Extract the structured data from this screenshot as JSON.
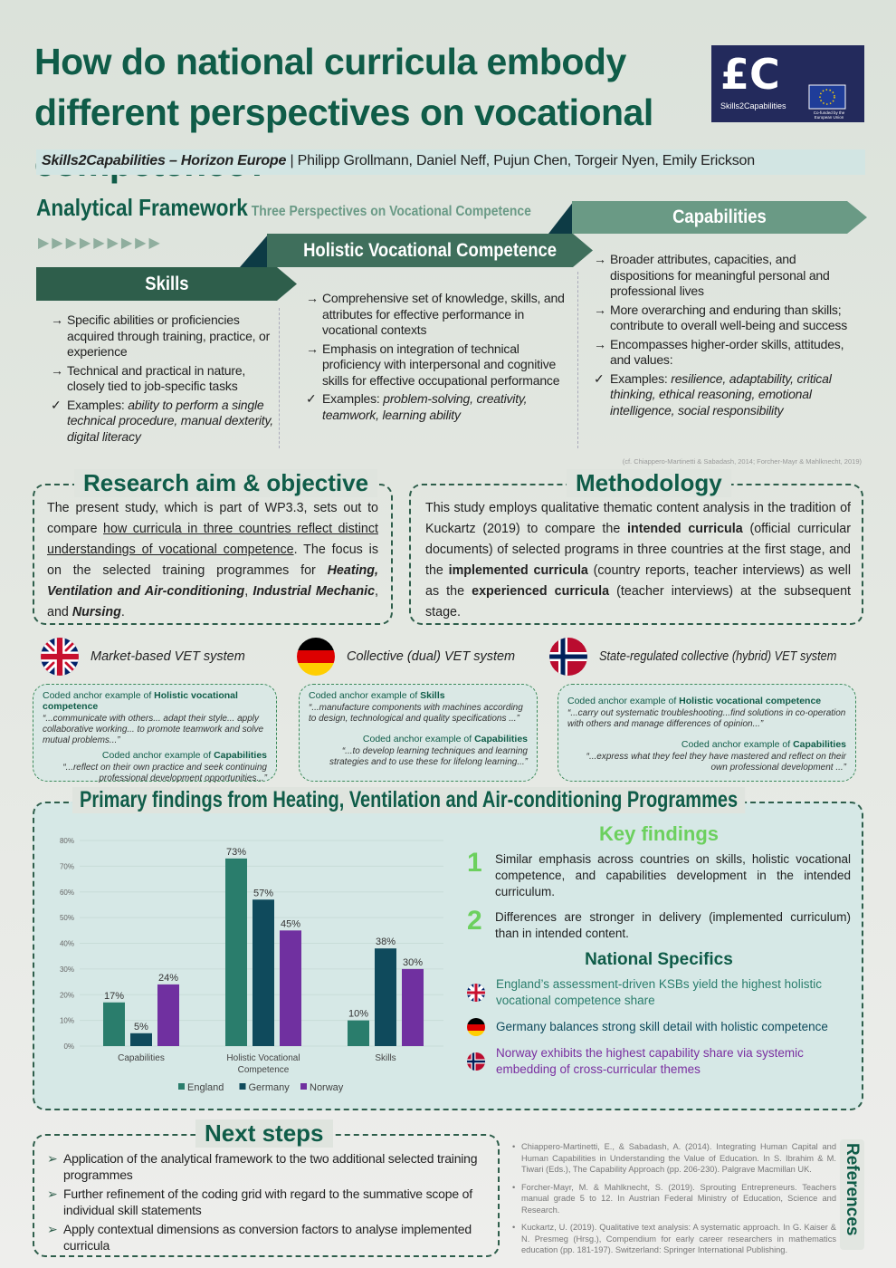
{
  "title": "How do national curricula embody different perspectives on vocational competence?",
  "logo": {
    "name": "Skills2Capabilities",
    "eu": "Co-funded by the European Union"
  },
  "authors": {
    "project": "Skills2Capabilities – Horizon Europe",
    "names": "| Philipp Grollmann, Daniel Neff, Pujun Chen, Torgeir Nyen, Emily Erickson"
  },
  "framework": {
    "title": "Analytical Framework",
    "subtitle": "Three Perspectives on Vocational Competence",
    "skills": {
      "label": "Skills",
      "items": [
        "Specific abilities or proficiencies acquired through training, practice, or experience",
        "Technical and practical in nature, closely tied to job-specific tasks"
      ],
      "examples_label": "Examples: ",
      "examples": "ability to perform a single technical procedure, manual dexterity, digital literacy"
    },
    "hvc": {
      "label": "Holistic Vocational Competence",
      "items": [
        "Comprehensive set of knowledge, skills, and attributes for effective performance in vocational contexts",
        "Emphasis on integration of technical proficiency with interpersonal and cognitive skills for effective occupational performance"
      ],
      "examples_label": "Examples: ",
      "examples": "problem-solving, creativity, teamwork, learning ability"
    },
    "capabilities": {
      "label": "Capabilities",
      "items": [
        "Broader attributes, capacities, and dispositions for meaningful personal and professional lives",
        "More overarching and enduring than skills; contribute to overall well-being and success",
        "Encompasses higher-order skills, attitudes, and values:"
      ],
      "examples_label": "Examples: ",
      "examples": "resilience, adaptability, critical thinking, ethical reasoning, emotional intelligence, social responsibility"
    },
    "citation": "(cf. Chiappero-Martinetti & Sabadash, 2014; Forcher-Mayr & Mahlknecht, 2019)"
  },
  "research": {
    "title": "Research aim & objective",
    "p1": "The present study, which is part of WP3.3, sets out to compare ",
    "u": "how curricula in three countries reflect distinct understandings of vocational competence",
    "p2": ". The focus is on the selected training programmes for ",
    "b1": "Heating, Ventilation and Air-conditioning",
    "c1": ", ",
    "b2": "Industrial Mechanic",
    "c2": ", and ",
    "b3": "Nursing",
    "c3": "."
  },
  "method": {
    "title": "Methodology",
    "p1": "This study employs qualitative thematic content analysis in the tradition of Kuckartz (2019) to compare the ",
    "b1": "intended curricula",
    "p2": " (official curricular documents) of selected programs in three countries at the first stage,  and the ",
    "b2": "implemented curricula",
    "p3": " (country reports, teacher interviews) as well as the ",
    "b3": "experienced curricula",
    "p4": " (teacher interviews) at the subsequent stage."
  },
  "vet": [
    {
      "label": "Market-based VET system",
      "a1_pre": "Coded anchor example of ",
      "a1": "Holistic vocational competence",
      "q1": "“...communicate with others... adapt their style... apply collaborative working... to promote teamwork and solve mutual problems...”",
      "a2_pre": "Coded anchor example of ",
      "a2": "Capabilities",
      "q2": "“...reflect on their own practice and seek continuing professional development opportunities...”"
    },
    {
      "label": "Collective (dual) VET system",
      "a1_pre": "Coded anchor example of ",
      "a1": "Skills",
      "q1": "“...manufacture components with machines according to design, technological and quality specifications ...”",
      "a2_pre": "Coded anchor example of ",
      "a2": "Capabilities",
      "q2": "“...to develop learning techniques and learning strategies and to use these for lifelong learning...”"
    },
    {
      "label": "State-regulated collective (hybrid) VET system",
      "a1_pre": "Coded anchor example of ",
      "a1": "Holistic vocational competence",
      "q1": "“...carry out systematic troubleshooting...find solutions in co-operation with others and manage differences of opinion...”",
      "a2_pre": "Coded anchor example of ",
      "a2": "Capabilities",
      "q2": "“...express what they feel they have mastered and reflect on their own professional development ...”"
    }
  ],
  "findings": {
    "title": "Primary findings from Heating, Ventilation and Air-conditioning Programmes",
    "key_title": "Key findings",
    "key": [
      {
        "n": "1",
        "text": "Similar emphasis across countries on skills, holistic vocational competence, and capabilities development in the intended curriculum."
      },
      {
        "n": "2",
        "text": "Differences are stronger in delivery (implemented curriculum) than in intended content."
      }
    ],
    "spec_title": "National Specifics",
    "specifics": [
      {
        "text": "England’s assessment-driven KSBs yield the highest holistic vocational competence share",
        "color": "#2a7d6c"
      },
      {
        "text": "Germany balances strong skill detail with holistic competence",
        "color": "#0f4a5c"
      },
      {
        "text": "Norway exhibits the highest capability share via systemic embedding of cross-curricular themes",
        "color": "#7a2fa0"
      }
    ]
  },
  "chart_data": {
    "type": "bar",
    "categories": [
      "Capabilities",
      "Holistic Vocational Competence",
      "Skills"
    ],
    "series": [
      {
        "name": "England",
        "values": [
          17,
          73,
          10
        ],
        "color": "#2a7d6c"
      },
      {
        "name": "Germany",
        "values": [
          5,
          57,
          38
        ],
        "color": "#0f4a5c"
      },
      {
        "name": "Norway",
        "values": [
          24,
          45,
          30
        ],
        "color": "#7030a0"
      }
    ],
    "yticks": [
      "0%",
      "10%",
      "20%",
      "30%",
      "40%",
      "50%",
      "60%",
      "70%",
      "80%"
    ],
    "ylim": [
      0,
      80
    ],
    "grid": true,
    "legend": "bottom"
  },
  "next": {
    "title": "Next steps",
    "items": [
      "Application of the analytical framework to the two additional selected training programmes",
      "Further refinement of the coding grid with regard to the summative scope of individual skill statements",
      "Apply contextual dimensions as conversion factors to analyse implemented curricula"
    ]
  },
  "refs": {
    "title": "References",
    "items": [
      "Chiappero-Martinetti, E., & Sabadash, A. (2014). Integrating Human Capital and Human Capabilities in Understanding the Value of Education. In S. Ibrahim & M. Tiwari (Eds.), The Capability Approach (pp. 206-230). Palgrave Macmillan UK.",
      "Forcher-Mayr, M. & Mahlknecht, S. (2019). Sprouting Entrepreneurs. Teachers manual grade 5 to 12. In Austrian Federal Ministry of Education, Science and Research.",
      "Kuckartz, U. (2019). Qualitative text analysis: A systematic approach. In G. Kaiser & N. Presmeg (Hrsg.), Compendium for early career researchers in mathematics education (pp. 181-197). Switzerland: Springer International Publishing."
    ]
  }
}
